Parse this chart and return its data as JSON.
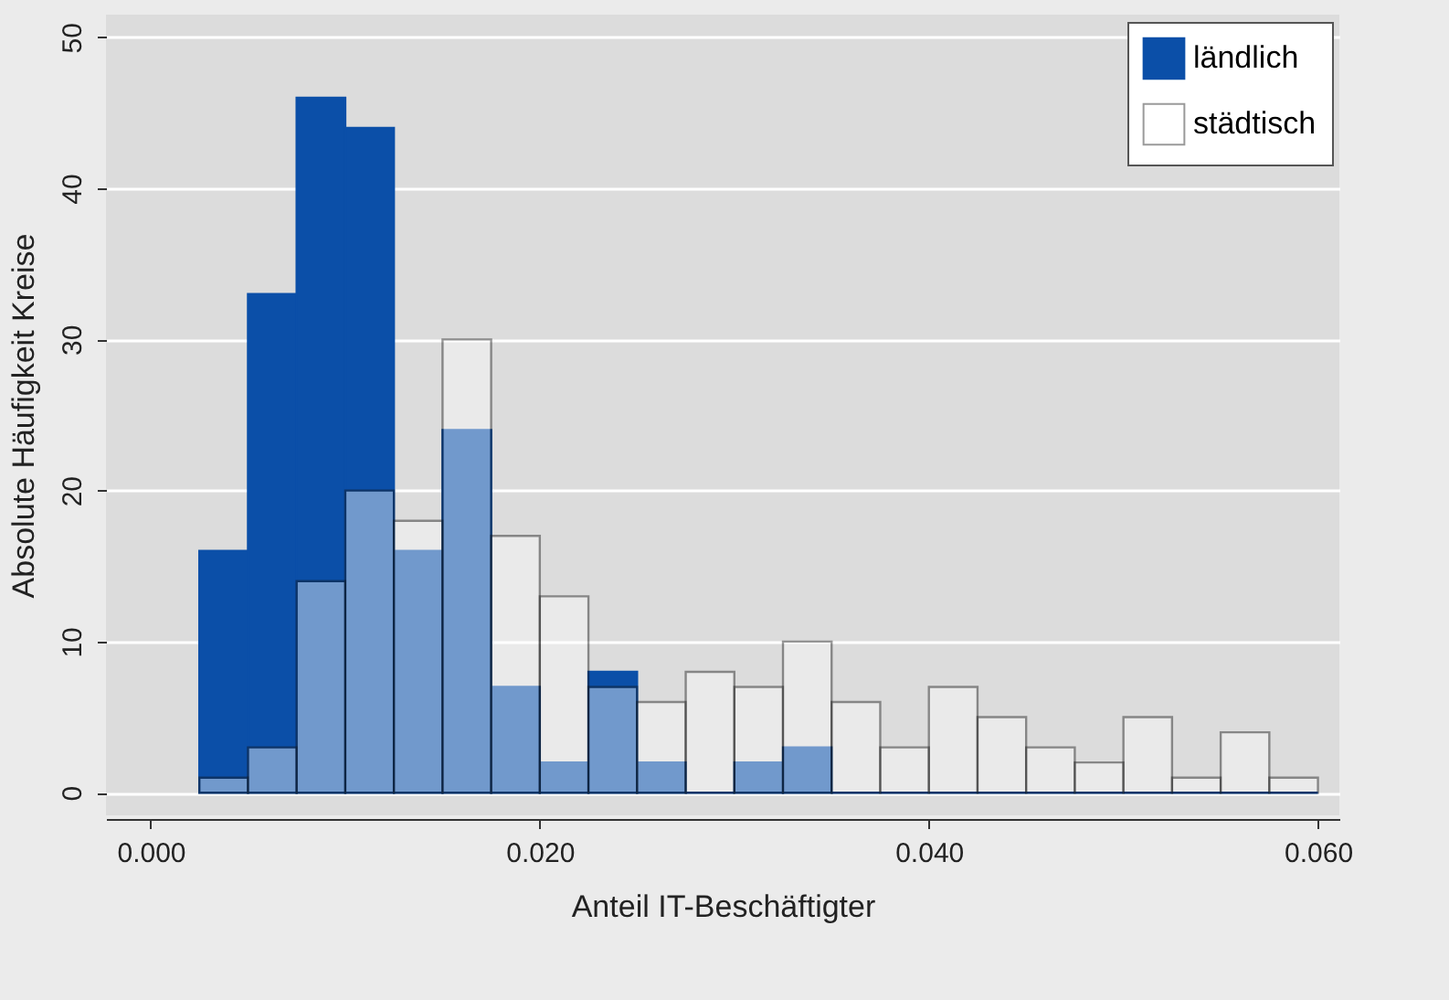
{
  "chart_data": {
    "type": "histogram",
    "xlabel": "Anteil IT-Beschäftigter",
    "ylabel": "Absolute Häufigkeit Kreise",
    "bins": [
      0.0025,
      0.005,
      0.0075,
      0.01,
      0.0125,
      0.015,
      0.0175,
      0.02,
      0.0225,
      0.025,
      0.0275,
      0.03,
      0.0325,
      0.035,
      0.0375,
      0.04,
      0.0425,
      0.045,
      0.0475,
      0.05,
      0.0525,
      0.055,
      0.0575,
      0.06
    ],
    "series": [
      {
        "name": "ländlich",
        "color": "#0b4fa8",
        "values": [
          16,
          33,
          46,
          44,
          16,
          24,
          7,
          2,
          8,
          2,
          0,
          2,
          3,
          0,
          0,
          0,
          0,
          0,
          0,
          0,
          0,
          0,
          0
        ]
      },
      {
        "name": "städtisch",
        "color": "#ffffff",
        "values": [
          1,
          3,
          14,
          20,
          18,
          30,
          17,
          13,
          7,
          6,
          8,
          7,
          10,
          6,
          3,
          7,
          5,
          3,
          2,
          5,
          1,
          4,
          1
        ]
      }
    ],
    "xlim": [
      -0.0023,
      0.0611
    ],
    "xticks": [
      {
        "value": 0,
        "label": "0.000"
      },
      {
        "value": 0.02,
        "label": "0.020"
      },
      {
        "value": 0.04,
        "label": "0.040"
      },
      {
        "value": 0.06,
        "label": "0.060"
      }
    ],
    "ylim": [
      -1.5,
      51.5
    ],
    "yticks": [
      0,
      10,
      20,
      30,
      40,
      50
    ],
    "grid": "y",
    "legend": "top right"
  }
}
